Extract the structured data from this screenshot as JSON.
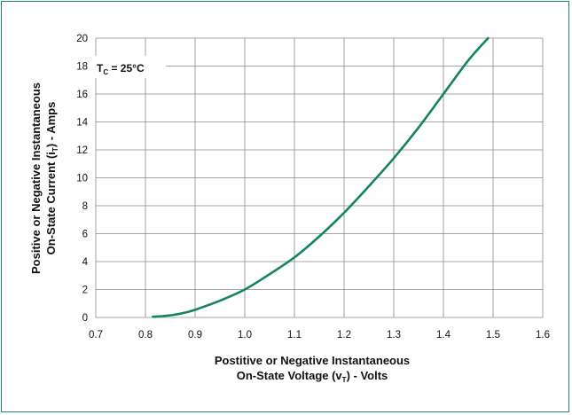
{
  "chart_data": {
    "type": "line",
    "xlabel_line1": "Postitive or Negative Instantaneous",
    "xlabel_line2_a": "On-State Voltage (v",
    "xlabel_line2_sub": "T",
    "xlabel_line2_b": ") - Volts",
    "ylabel_line1": "Positive or Negative Instantaneous",
    "ylabel_line2_a": "On-State Current (i",
    "ylabel_line2_sub": "T",
    "ylabel_line2_b": ") - Amps",
    "annotation_a": "T",
    "annotation_sub": "C",
    "annotation_b": " = 25°C",
    "xlim": [
      0.7,
      1.6
    ],
    "ylim": [
      0,
      20
    ],
    "x_ticks": [
      0.7,
      0.8,
      0.9,
      1.0,
      1.1,
      1.2,
      1.3,
      1.4,
      1.5,
      1.6
    ],
    "x_tick_labels": [
      "0.7",
      "0.8",
      "0.9",
      "1.0",
      "1.1",
      "1.2",
      "1.3",
      "1.4",
      "1.5",
      "1.6"
    ],
    "y_ticks": [
      0,
      2,
      4,
      6,
      8,
      10,
      12,
      14,
      16,
      18,
      20
    ],
    "y_tick_labels": [
      "0",
      "2",
      "4",
      "6",
      "8",
      "10",
      "12",
      "14",
      "16",
      "18",
      "20"
    ],
    "grid": true,
    "line_color": "#14855a",
    "series": [
      {
        "x": [
          0.815,
          0.85,
          0.88,
          0.9,
          0.95,
          1.0,
          1.05,
          1.1,
          1.15,
          1.2,
          1.25,
          1.3,
          1.35,
          1.4,
          1.45,
          1.49
        ],
        "y": [
          0.05,
          0.15,
          0.35,
          0.55,
          1.2,
          2.0,
          3.1,
          4.3,
          5.8,
          7.5,
          9.4,
          11.4,
          13.6,
          16.0,
          18.4,
          20.0
        ]
      }
    ]
  }
}
